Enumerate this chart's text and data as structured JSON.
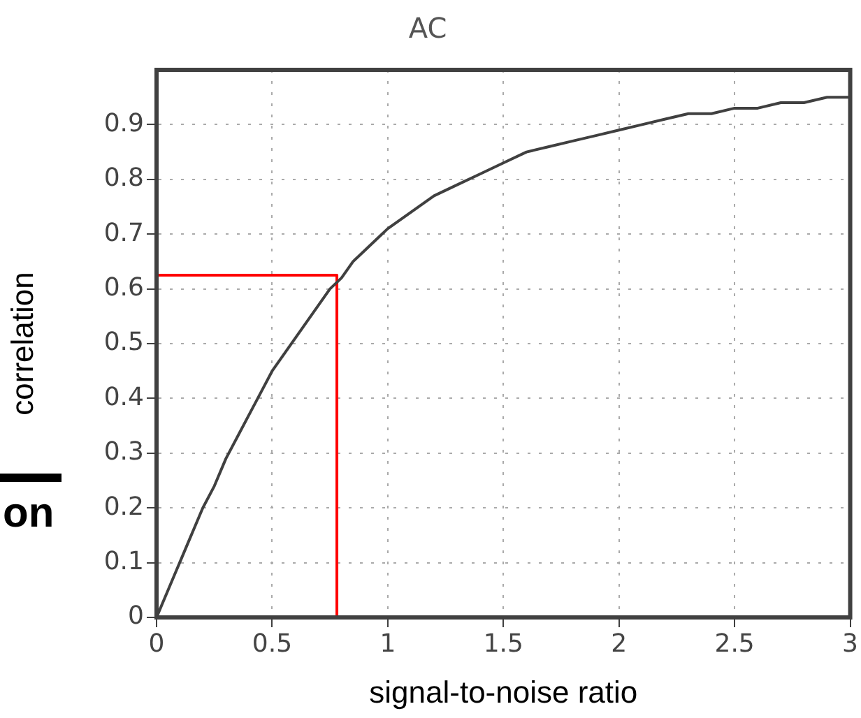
{
  "chart_data": {
    "type": "line",
    "title": "AC",
    "xlabel": "signal-to-noise ratio",
    "ylabel": "correlation",
    "series": [
      {
        "color": "#404040",
        "x": [
          0,
          0.05,
          0.1,
          0.15,
          0.2,
          0.25,
          0.3,
          0.35,
          0.4,
          0.45,
          0.5,
          0.55,
          0.6,
          0.65,
          0.7,
          0.75,
          0.8,
          0.85,
          0.9,
          0.95,
          1,
          1.1,
          1.2,
          1.3,
          1.4,
          1.5,
          1.6,
          1.7,
          1.8,
          1.9,
          2,
          2.1,
          2.2,
          2.3,
          2.4,
          2.5,
          2.6,
          2.7,
          2.8,
          2.9,
          3
        ],
        "values": [
          0,
          0.05,
          0.1,
          0.15,
          0.2,
          0.24,
          0.29,
          0.33,
          0.37,
          0.41,
          0.45,
          0.48,
          0.51,
          0.54,
          0.57,
          0.6,
          0.62,
          0.65,
          0.67,
          0.69,
          0.71,
          0.74,
          0.77,
          0.79,
          0.81,
          0.83,
          0.85,
          0.86,
          0.87,
          0.88,
          0.89,
          0.9,
          0.91,
          0.92,
          0.92,
          0.93,
          0.93,
          0.94,
          0.94,
          0.95,
          0.95
        ]
      },
      {
        "color": "#ff0000",
        "x": [
          0,
          0.78,
          0.78
        ],
        "values": [
          0.625,
          0.625,
          0
        ]
      }
    ],
    "xlim": [
      0,
      3
    ],
    "xticks": [
      0,
      0.5,
      1,
      1.5,
      2,
      2.5,
      3
    ],
    "ylim": [
      0,
      1
    ],
    "yticks": [
      0,
      0.1,
      0.2,
      0.3,
      0.4,
      0.5,
      0.6,
      0.7,
      0.8,
      0.9
    ],
    "grid": true,
    "line_style": "solid",
    "marker": "none",
    "legend": false,
    "annotations": [
      "on"
    ]
  }
}
